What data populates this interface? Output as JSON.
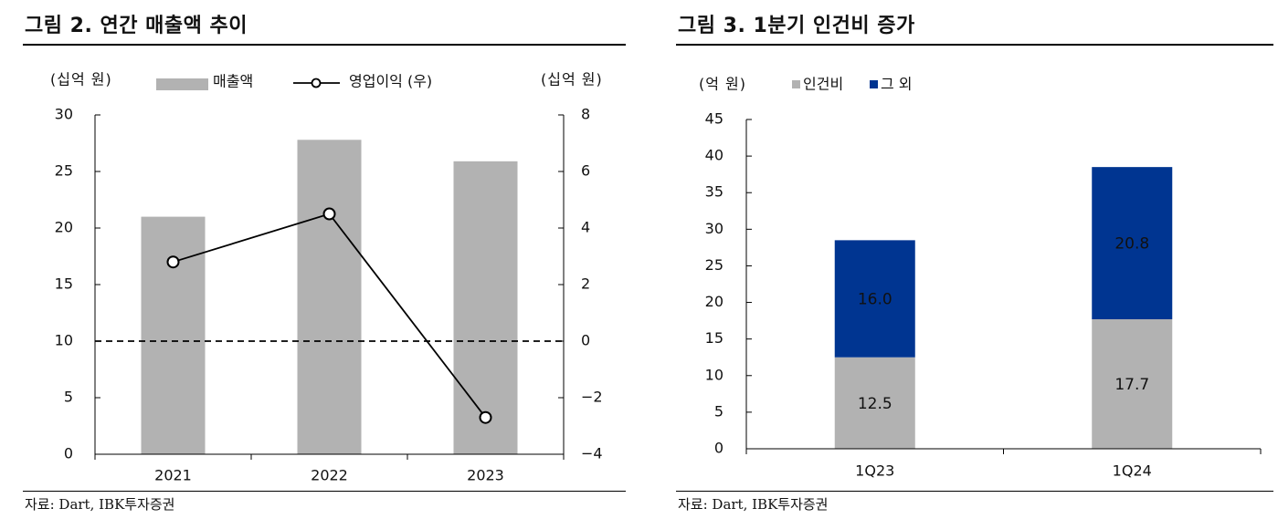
{
  "left": {
    "title": "그림 2. 연간 매출액 추이",
    "source": "자료: Dart, IBK투자증권",
    "chart_data": {
      "type": "bar+line",
      "categories": [
        "2021",
        "2022",
        "2023"
      ],
      "bar_series": {
        "name": "매출액",
        "values": [
          21.0,
          27.8,
          25.9
        ],
        "color": "#b2b2b2"
      },
      "line_series": {
        "name": "영업이익 (우)",
        "values": [
          2.8,
          4.5,
          -2.7
        ],
        "color": "#000000"
      },
      "left_axis": {
        "unit": "(십억 원)",
        "ylim": [
          0,
          30
        ],
        "ticks": [
          "0",
          "5",
          "10",
          "15",
          "20",
          "25",
          "30"
        ]
      },
      "right_axis": {
        "unit": "(십억 원)",
        "ylim": [
          -4,
          8
        ],
        "ticks": [
          "−4",
          "−2",
          "0",
          "2",
          "4",
          "6",
          "8"
        ]
      },
      "reference_line": {
        "axis": "right",
        "value": 0,
        "style": "dashed"
      },
      "legend_position": "top"
    }
  },
  "right": {
    "title": "그림 3. 1분기 인건비 증가",
    "source": "자료: Dart, IBK투자증권",
    "chart_data": {
      "type": "stacked-bar",
      "categories": [
        "1Q23",
        "1Q24"
      ],
      "series": [
        {
          "name": "인건비",
          "values": [
            12.5,
            17.7
          ],
          "labels": [
            "12.5",
            "17.7"
          ],
          "color": "#b2b2b2",
          "label_color": "#111111"
        },
        {
          "name": "그 외",
          "values": [
            16.0,
            20.8
          ],
          "labels": [
            "16.0",
            "20.8"
          ],
          "color": "#003591",
          "label_color": "#ffffff"
        }
      ],
      "y_axis": {
        "unit": "(억 원)",
        "ylim": [
          0,
          45
        ],
        "ticks": [
          "0",
          "5",
          "10",
          "15",
          "20",
          "25",
          "30",
          "35",
          "40",
          "45"
        ]
      },
      "legend_position": "top"
    }
  }
}
